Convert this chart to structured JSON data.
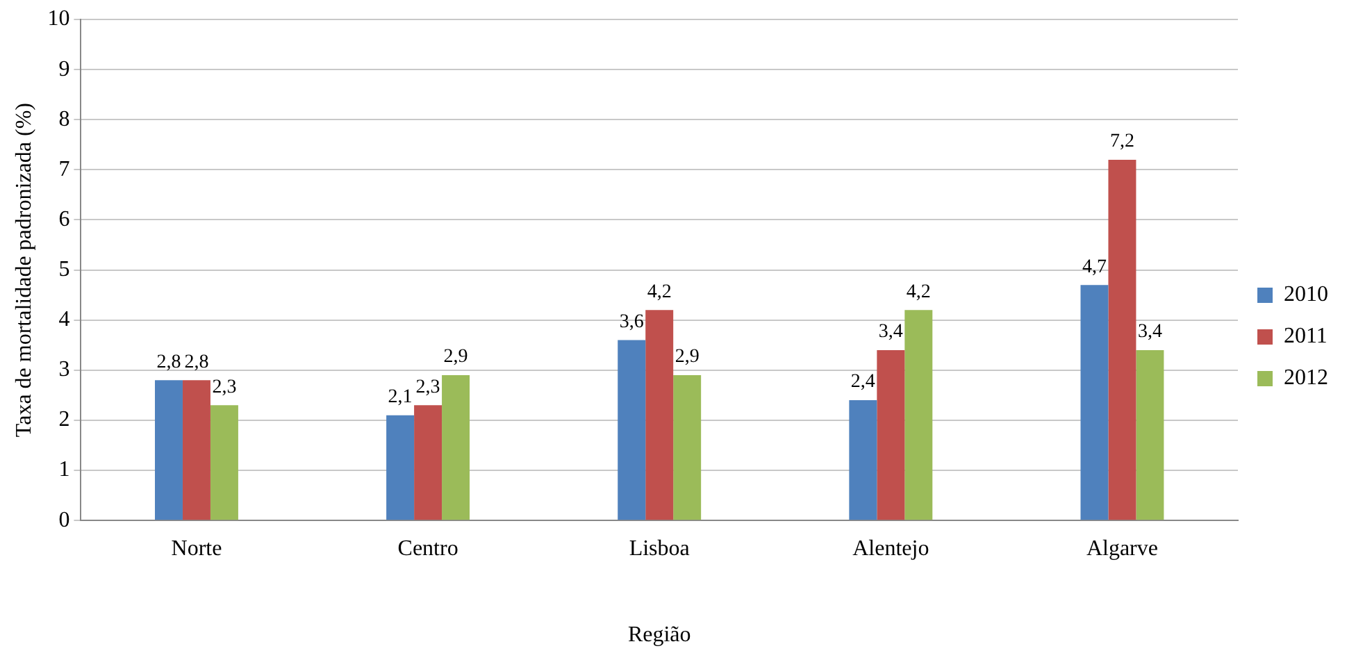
{
  "chart_data": {
    "type": "bar",
    "xlabel": "Região",
    "ylabel": "Taxa de mortalidade padronizada (%)",
    "categories": [
      "Norte",
      "Centro",
      "Lisboa",
      "Alentejo",
      "Algarve"
    ],
    "series": [
      {
        "name": "2010",
        "color": "#4f81bd",
        "values": [
          2.8,
          2.1,
          3.6,
          2.4,
          4.7
        ],
        "value_labels": [
          "2,8",
          "2,1",
          "3,6",
          "2,4",
          "4,7"
        ]
      },
      {
        "name": "2011",
        "color": "#c0504d",
        "values": [
          2.8,
          2.3,
          4.2,
          3.4,
          7.2
        ],
        "value_labels": [
          "2,8",
          "2,3",
          "4,2",
          "3,4",
          "7,2"
        ]
      },
      {
        "name": "2012",
        "color": "#9bbb59",
        "values": [
          2.3,
          2.9,
          2.9,
          4.2,
          3.4
        ],
        "value_labels": [
          "2,3",
          "2,9",
          "2,9",
          "4,2",
          "3,4"
        ]
      }
    ],
    "ylim": [
      0,
      10
    ],
    "yticks": [
      0,
      1,
      2,
      3,
      4,
      5,
      6,
      7,
      8,
      9,
      10
    ],
    "grid": "y",
    "legend": "right"
  }
}
